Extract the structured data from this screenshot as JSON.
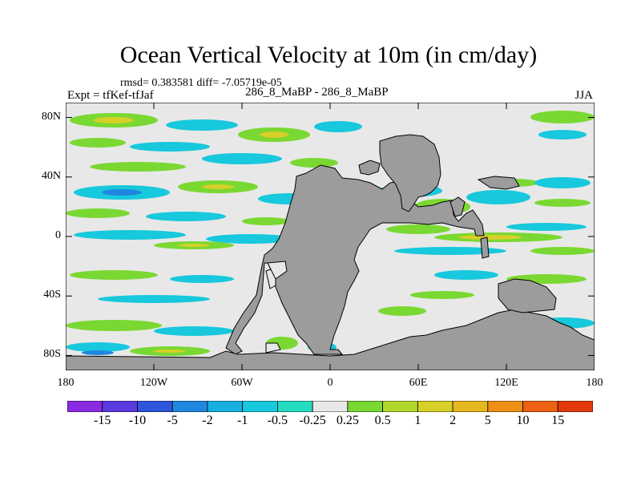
{
  "header": {
    "title": "Ocean Vertical Velocity at 10m (in cm/day)",
    "stats": "rmsd= 0.383581 diff= -7.05719e-05",
    "expt": "Expt = tfKef-tfJaf",
    "runs": "286_8_MaBP - 286_8_MaBP",
    "season": "JJA"
  },
  "axes": {
    "x_ticks": [
      {
        "value": -180,
        "label": "180"
      },
      {
        "value": -120,
        "label": "120W"
      },
      {
        "value": -60,
        "label": "60W"
      },
      {
        "value": 0,
        "label": "0"
      },
      {
        "value": 60,
        "label": "60E"
      },
      {
        "value": 120,
        "label": "120E"
      },
      {
        "value": 180,
        "label": "180"
      }
    ],
    "y_ticks": [
      {
        "value": 80,
        "label": "80N"
      },
      {
        "value": 40,
        "label": "40N"
      },
      {
        "value": 0,
        "label": "0"
      },
      {
        "value": -40,
        "label": "40S"
      },
      {
        "value": -80,
        "label": "80S"
      }
    ],
    "xlim": [
      -180,
      180
    ],
    "ylim": [
      -90,
      90
    ]
  },
  "colorbar": {
    "colors": [
      "#8a2be2",
      "#5a3ae0",
      "#2f55dc",
      "#1f87e0",
      "#18b0e0",
      "#18c8dc",
      "#26dcc0",
      "#e8e8e8",
      "#7ad832",
      "#b0d82c",
      "#d6d028",
      "#e6b820",
      "#ee9018",
      "#ec6212",
      "#e23a0c"
    ],
    "labels": [
      "-15",
      "-10",
      "-5",
      "-2",
      "-1",
      "-0.5",
      "-0.25",
      "0.25",
      "0.5",
      "1",
      "2",
      "5",
      "10",
      "15"
    ]
  },
  "colors": {
    "land": "#9c9c9c",
    "background": "#e8e8e8"
  }
}
